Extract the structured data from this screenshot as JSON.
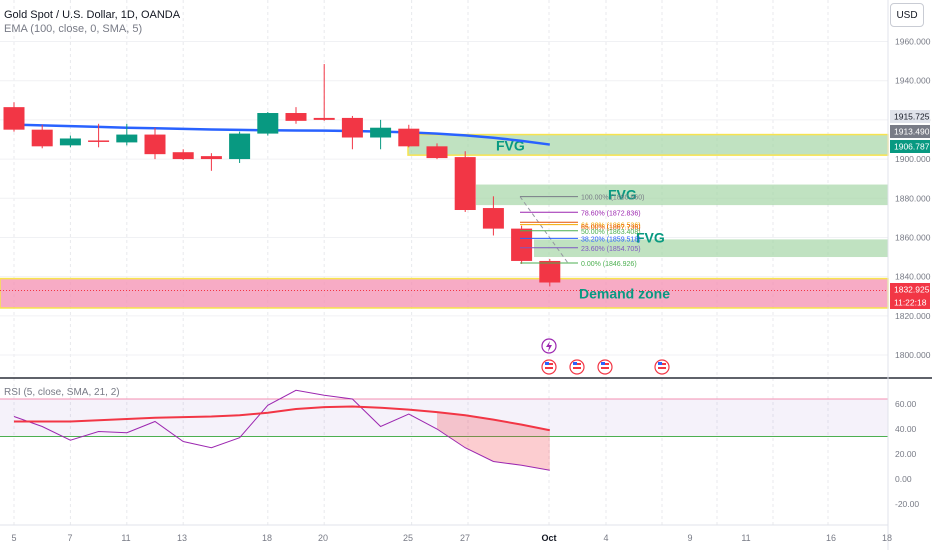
{
  "header": {
    "title": "Gold Spot / U.S. Dollar, 1D, OANDA",
    "ema": "EMA (100, close, 0, SMA, 5)",
    "currency": "USD"
  },
  "rsi_label": "RSI (5, close, SMA, 21, 2)",
  "colors": {
    "up": "#089981",
    "down": "#f23645",
    "ema": "#2962ff",
    "fvg": "#a5d6a7",
    "demand": "#f8bbd0",
    "rsi_line": "#9c27b0",
    "rsi_ma": "#f23645"
  },
  "chart_data": [
    {
      "type": "candlestick",
      "y_axis_ticks": [
        "1960.000",
        "1940.000",
        "1920.000",
        "1900.000",
        "1880.000",
        "1860.000",
        "1840.000",
        "1820.000",
        "1800.000"
      ],
      "ylim": [
        1793,
        1967
      ],
      "x_tick_labels": [
        "5",
        "7",
        "11",
        "13",
        "18",
        "20",
        "25",
        "27",
        "Oct",
        "4",
        "9",
        "11",
        "16",
        "18"
      ],
      "candles": [
        {
          "o": 1926.5,
          "h": 1929,
          "l": 1914,
          "c": 1915
        },
        {
          "o": 1915,
          "h": 1917.5,
          "l": 1905.5,
          "c": 1906.5
        },
        {
          "o": 1907,
          "h": 1912,
          "l": 1906,
          "c": 1910.5
        },
        {
          "o": 1909.5,
          "h": 1918,
          "l": 1906,
          "c": 1909
        },
        {
          "o": 1908.5,
          "h": 1918,
          "l": 1907,
          "c": 1912.5
        },
        {
          "o": 1912.5,
          "h": 1916,
          "l": 1900,
          "c": 1902.5
        },
        {
          "o": 1903.5,
          "h": 1905,
          "l": 1899.5,
          "c": 1900
        },
        {
          "o": 1901.5,
          "h": 1903,
          "l": 1894,
          "c": 1900
        },
        {
          "o": 1900,
          "h": 1914,
          "l": 1898,
          "c": 1913
        },
        {
          "o": 1913,
          "h": 1924,
          "l": 1912,
          "c": 1923.5
        },
        {
          "o": 1923.5,
          "h": 1926.5,
          "l": 1918,
          "c": 1919.5
        },
        {
          "o": 1921,
          "h": 1948.5,
          "l": 1919.5,
          "c": 1920
        },
        {
          "o": 1921,
          "h": 1922,
          "l": 1905,
          "c": 1911
        },
        {
          "o": 1911,
          "h": 1920,
          "l": 1905,
          "c": 1916
        },
        {
          "o": 1915.5,
          "h": 1917.5,
          "l": 1906,
          "c": 1906.5
        },
        {
          "o": 1906.5,
          "h": 1908,
          "l": 1900,
          "c": 1900.5
        },
        {
          "o": 1901,
          "h": 1904,
          "l": 1873,
          "c": 1874
        },
        {
          "o": 1875,
          "h": 1881,
          "l": 1861,
          "c": 1864.5
        },
        {
          "o": 1864.5,
          "h": 1866,
          "l": 1846.5,
          "c": 1848
        },
        {
          "o": 1848,
          "h": 1849,
          "l": 1835,
          "c": 1837
        }
      ],
      "ema": [
        1917.6,
        1917.2,
        1916.8,
        1916.4,
        1916.0,
        1915.7,
        1915.4,
        1915.1,
        1914.9,
        1914.7,
        1914.6,
        1914.5,
        1914.3,
        1914.0,
        1913.6,
        1913.0,
        1912.1,
        1910.9,
        1909.3,
        1907.4
      ],
      "fvg_zones": [
        {
          "label": "FVG",
          "top": 1912.5,
          "bottom": 1902
        },
        {
          "label": "FVG",
          "top": 1887,
          "bottom": 1876.5
        },
        {
          "label": "FVG",
          "top": 1859,
          "bottom": 1850
        }
      ],
      "demand_zone": {
        "label": "Demand zone",
        "top": 1839,
        "bottom": 1824
      },
      "fibonacci": [
        {
          "label": "100.00% (1880.860)",
          "value": 1880.86
        },
        {
          "label": "78.60% (1872.836)",
          "value": 1872.836
        },
        {
          "label": "61.80% (1866.536)",
          "value": 1866.536
        },
        {
          "label": "65.00% (1867.736)",
          "value": 1867.736
        },
        {
          "label": "50.00% (1863.408)",
          "value": 1863.408
        },
        {
          "label": "38.20% (1859.518)",
          "value": 1859.518
        },
        {
          "label": "23.60% (1854.705)",
          "value": 1854.705
        },
        {
          "label": "0.00% (1846.926)",
          "value": 1846.926
        }
      ],
      "price_labels": [
        "1915.725",
        "1913.490",
        "1906.787",
        "1832.925",
        "11:22:18"
      ]
    },
    {
      "type": "line",
      "title": "RSI (5, close, SMA, 21, 2)",
      "y_axis_ticks": [
        "60.00",
        "40.00",
        "20.00",
        "0.00",
        "-20.00"
      ],
      "ylim": [
        -25,
        78
      ],
      "series": [
        {
          "values": [
            50,
            42,
            31,
            38,
            37,
            46,
            30,
            25,
            33,
            59,
            71,
            67,
            64,
            42,
            52,
            40,
            25,
            14,
            11,
            7
          ]
        },
        {
          "values": [
            46,
            46,
            46,
            47,
            48,
            49,
            49.5,
            50,
            51,
            53,
            56,
            57.5,
            58,
            57,
            55.5,
            53.5,
            51,
            47.5,
            43.5,
            39
          ]
        }
      ]
    }
  ]
}
